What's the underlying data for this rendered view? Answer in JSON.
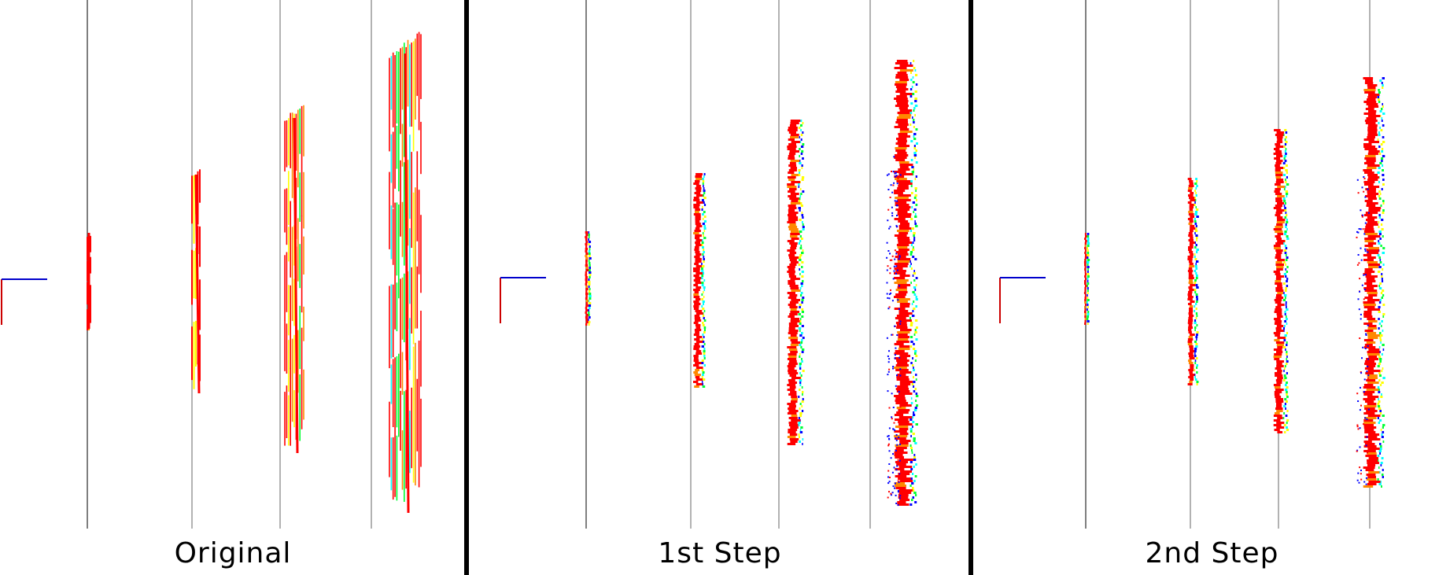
{
  "panels": [
    {
      "label": "Original",
      "mode": "original"
    },
    {
      "label": "1st Step",
      "mode": "step1"
    },
    {
      "label": "2nd Step",
      "mode": "step2"
    }
  ],
  "colors": {
    "near": "#ff0000",
    "orange": "#ff8800",
    "yellow": "#ffff00",
    "green": "#00ff33",
    "cyan": "#00ffff",
    "far": "#0000ff",
    "divider": "#000000",
    "guide": "#999999",
    "axis_vertical": "#cc0000",
    "axis_horizontal": "#0000cc"
  }
}
